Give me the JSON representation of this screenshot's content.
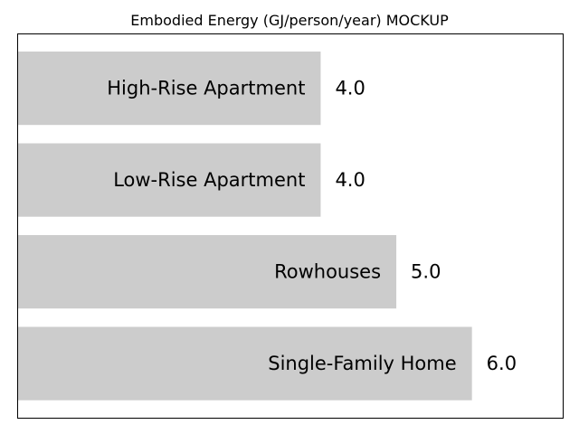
{
  "chart_data": {
    "type": "bar",
    "orientation": "horizontal",
    "title": "Embodied Energy (GJ/person/year) MOCKUP",
    "xlabel": "",
    "ylabel": "",
    "categories": [
      "High-Rise Apartment",
      "Low-Rise Apartment",
      "Rowhouses",
      "Single-Family Home"
    ],
    "values": [
      4.0,
      4.0,
      5.0,
      6.0
    ],
    "value_labels": [
      "4.0",
      "4.0",
      "5.0",
      "6.0"
    ],
    "xlim": [
      0,
      7.2
    ],
    "bar_color": "#cccccc",
    "axes_visible": false,
    "grid": false,
    "legend": "none"
  }
}
